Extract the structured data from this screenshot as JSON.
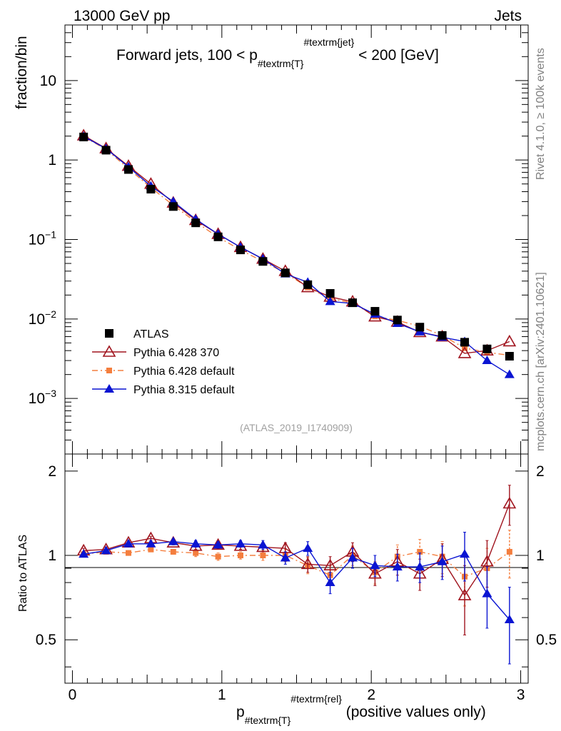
{
  "header": {
    "left": "13000 GeV pp",
    "right": "Jets",
    "side_top": "Rivet 4.1.0, ≥ 100k events",
    "side_bottom": "mcplots.cern.ch [arXiv:2401.10621]"
  },
  "chart_data": {
    "type": "scatter",
    "title": {
      "main": "Forward jets, 100 < p",
      "sub": "#textrm{T}",
      "sup": "#textrm{jet}",
      "tail": " < 200 [GeV]"
    },
    "analysis_id": "(ATLAS_2019_I1740909)",
    "ylabel": "fraction/bin",
    "ratio_ylabel": "Ratio to ATLAS",
    "xlabel": {
      "main": "p",
      "sub": "#textrm{T}",
      "sup": "#textrm{rel}",
      "tail": " (positive values only)"
    },
    "xlim": [
      -0.05,
      3.05
    ],
    "ylim": [
      0.0002,
      50
    ],
    "yscale": "log",
    "ratio_ylim": [
      0.35,
      2.3
    ],
    "x_ticks": [
      "0",
      "1",
      "2",
      "3"
    ],
    "y_ticks": [
      {
        "value": 10,
        "base": "10",
        "exp": ""
      },
      {
        "value": 1,
        "base": "1",
        "exp": ""
      },
      {
        "value": 0.1,
        "base": "10",
        "exp": "−1"
      },
      {
        "value": 0.01,
        "base": "10",
        "exp": "−2"
      },
      {
        "value": 0.001,
        "base": "10",
        "exp": "−3"
      }
    ],
    "ratio_ticks": [
      "2",
      "1",
      "0.5"
    ],
    "x": [
      0.075,
      0.225,
      0.375,
      0.525,
      0.675,
      0.825,
      0.975,
      1.125,
      1.275,
      1.425,
      1.575,
      1.725,
      1.875,
      2.025,
      2.175,
      2.325,
      2.475,
      2.625,
      2.775,
      2.925
    ],
    "series": [
      {
        "name": "ATLAS",
        "color": "#000000",
        "marker": "square",
        "values": [
          1.95,
          1.33,
          0.76,
          0.43,
          0.26,
          0.162,
          0.108,
          0.074,
          0.053,
          0.038,
          0.027,
          0.021,
          0.016,
          0.0125,
          0.0097,
          0.0079,
          0.0062,
          0.0051,
          0.0042,
          0.0034
        ]
      },
      {
        "name": "Pythia 6.428 370",
        "color": "#a0141e",
        "marker": "open-triangle",
        "line": "solid",
        "values": [
          2.03,
          1.4,
          0.84,
          0.5,
          0.29,
          0.175,
          0.117,
          0.08,
          0.057,
          0.04,
          0.025,
          0.019,
          0.0165,
          0.0107,
          0.0092,
          0.0068,
          0.006,
          0.0037,
          0.004,
          0.0052
        ],
        "ratio": [
          1.04,
          1.05,
          1.11,
          1.15,
          1.11,
          1.08,
          1.09,
          1.08,
          1.07,
          1.06,
          0.93,
          0.92,
          1.03,
          0.86,
          0.95,
          0.86,
          0.97,
          0.72,
          0.95,
          1.53
        ],
        "ratio_err": [
          0.02,
          0.02,
          0.02,
          0.02,
          0.02,
          0.03,
          0.03,
          0.03,
          0.04,
          0.05,
          0.06,
          0.07,
          0.08,
          0.08,
          0.1,
          0.11,
          0.13,
          0.2,
          0.18,
          0.25
        ]
      },
      {
        "name": "Pythia 6.428 default",
        "color": "#f47e3e",
        "marker": "square",
        "line": "dashdot",
        "values": [
          1.97,
          1.36,
          0.78,
          0.45,
          0.27,
          0.166,
          0.107,
          0.074,
          0.053,
          0.038,
          0.025,
          0.018,
          0.016,
          0.0108,
          0.0096,
          0.0081,
          0.0062,
          0.0043,
          0.0038,
          0.0035
        ],
        "ratio": [
          1.01,
          1.03,
          1.02,
          1.05,
          1.03,
          1.02,
          0.99,
          1.0,
          1.0,
          1.0,
          0.92,
          0.85,
          1.0,
          0.87,
          0.99,
          1.03,
          0.99,
          0.84,
          0.9,
          1.03
        ],
        "ratio_err": [
          0.02,
          0.02,
          0.02,
          0.02,
          0.02,
          0.03,
          0.03,
          0.03,
          0.04,
          0.05,
          0.06,
          0.07,
          0.08,
          0.08,
          0.1,
          0.11,
          0.13,
          0.18,
          0.16,
          0.2
        ]
      },
      {
        "name": "Pythia 8.315 default",
        "color": "#0a14d2",
        "marker": "triangle",
        "line": "solid",
        "values": [
          1.98,
          1.39,
          0.82,
          0.47,
          0.3,
          0.18,
          0.117,
          0.08,
          0.057,
          0.037,
          0.029,
          0.0166,
          0.0157,
          0.0115,
          0.0088,
          0.0069,
          0.0059,
          0.0052,
          0.003,
          0.002
        ],
        "ratio": [
          1.01,
          1.04,
          1.1,
          1.1,
          1.12,
          1.1,
          1.09,
          1.1,
          1.09,
          0.98,
          1.06,
          0.8,
          0.98,
          0.92,
          0.91,
          0.91,
          0.95,
          1.01,
          0.73,
          0.59
        ],
        "ratio_err": [
          0.02,
          0.02,
          0.02,
          0.02,
          0.02,
          0.03,
          0.03,
          0.03,
          0.04,
          0.05,
          0.06,
          0.07,
          0.08,
          0.08,
          0.1,
          0.11,
          0.13,
          0.2,
          0.18,
          0.18
        ]
      }
    ]
  }
}
